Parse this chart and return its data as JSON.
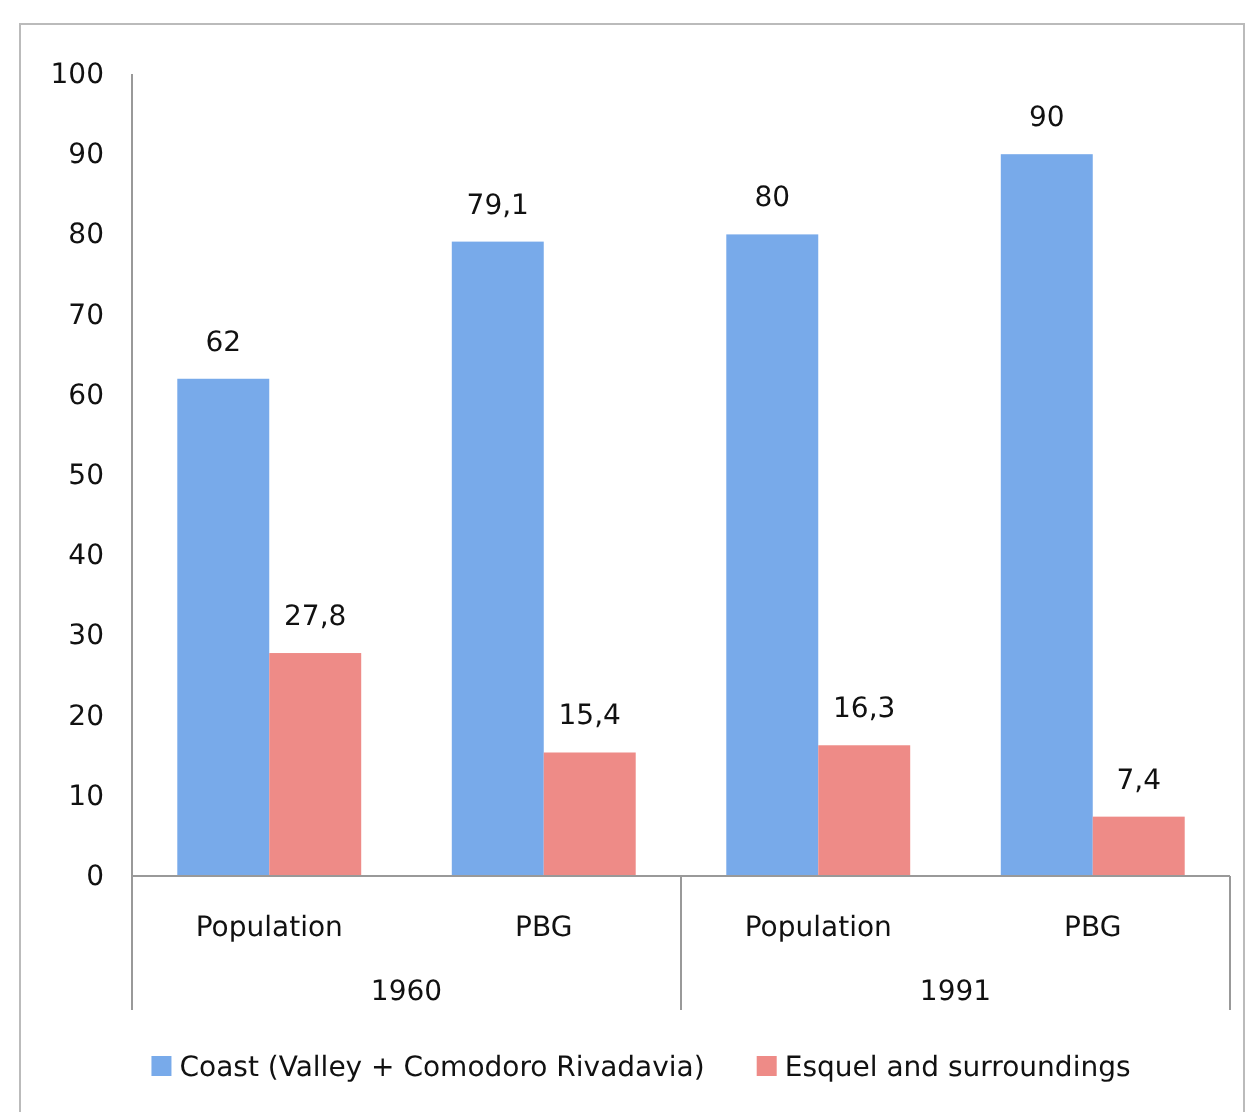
{
  "chart_data": {
    "type": "bar",
    "categories": [
      "Population",
      "PBG",
      "Population",
      "PBG"
    ],
    "series": [
      {
        "name": "Coast (Valley + Comodoro Rivadavia)",
        "color": "#78aaea",
        "values": [
          62,
          79.1,
          80,
          90
        ],
        "value_labels": [
          "62",
          "79,1",
          "80",
          "90"
        ]
      },
      {
        "name": "Esquel and surroundings",
        "color": "#ee8b87",
        "values": [
          27.8,
          15.4,
          16.3,
          7.4
        ],
        "value_labels": [
          "27,8",
          "15,4",
          "16,3",
          "7,4"
        ]
      }
    ],
    "annotations": [
      "1960",
      "1991"
    ],
    "ylim": [
      0,
      100
    ],
    "yticks": [
      0,
      10,
      20,
      30,
      40,
      50,
      60,
      70,
      80,
      90,
      100
    ],
    "grid": false,
    "legend": "bottom"
  }
}
